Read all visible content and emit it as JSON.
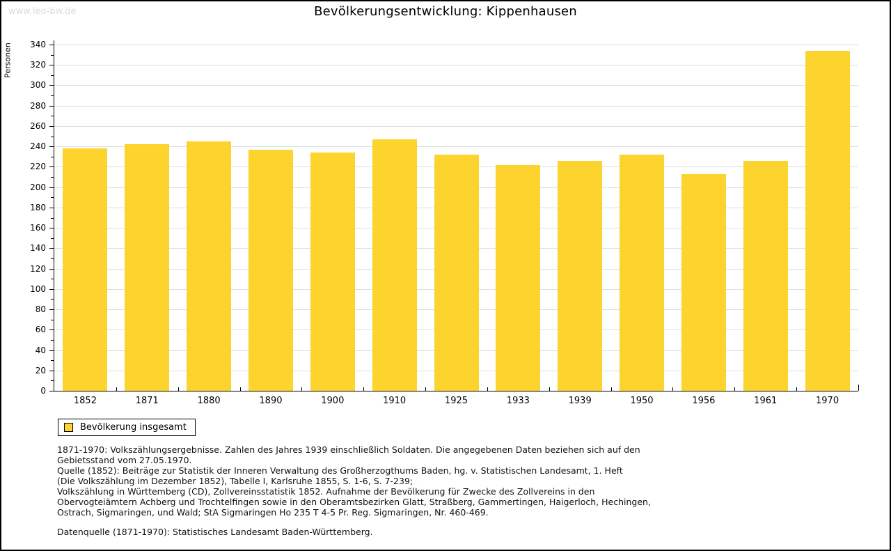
{
  "watermark": "www.leo-bw.de",
  "title": "Bevölkerungsentwicklung: Kippenhausen",
  "chart_data": {
    "type": "bar",
    "title": "Bevölkerungsentwicklung: Kippenhausen",
    "xlabel": "",
    "ylabel": "Personen",
    "ylim": [
      0,
      340
    ],
    "ytick_step": 20,
    "ytick_minor_step": 10,
    "grid": true,
    "legend_position": "bottom-left",
    "categories": [
      "1852",
      "1871",
      "1880",
      "1890",
      "1900",
      "1910",
      "1925",
      "1933",
      "1939",
      "1950",
      "1956",
      "1961",
      "1970"
    ],
    "series": [
      {
        "name": "Bevölkerung insgesamt",
        "values": [
          238,
          242,
          245,
          237,
          234,
          247,
          232,
          222,
          226,
          232,
          213,
          226,
          334
        ]
      }
    ]
  },
  "legend": {
    "label": "Bevölkerung insgesamt"
  },
  "colors": {
    "bar": "#FDD32D",
    "grid": "#DDDDDD",
    "axis": "#000000",
    "watermark": "#DCDCDC",
    "background": "#FFFFFF",
    "border": "#000000"
  },
  "footnotes": {
    "lines": [
      "1871-1970: Volkszählungsergebnisse. Zahlen des Jahres 1939 einschließlich Soldaten. Die angegebenen Daten beziehen sich auf den",
      "Gebietsstand vom 27.05.1970.",
      "Quelle (1852): Beiträge zur Statistik der Inneren Verwaltung des Großherzogthums Baden, hg. v. Statistischen Landesamt, 1. Heft",
      "(Die Volkszählung im Dezember 1852), Tabelle I, Karlsruhe 1855, S. 1-6, S. 7-239;",
      "Volkszählung in Württemberg (CD), Zollvereinsstatistik 1852. Aufnahme der Bevölkerung für Zwecke des Zollvereins in den",
      "Obervogteiämtern Achberg und Trochtelfingen sowie in den Oberamtsbezirken Glatt, Straßberg, Gammertingen, Haigerloch, Hechingen,",
      "Ostrach, Sigmaringen, und Wald; StA Sigmaringen Ho 235 T 4-5 Pr. Reg. Sigmaringen, Nr. 460-469."
    ],
    "source_line": "Datenquelle (1871-1970): Statistisches Landesamt Baden-Württemberg."
  }
}
